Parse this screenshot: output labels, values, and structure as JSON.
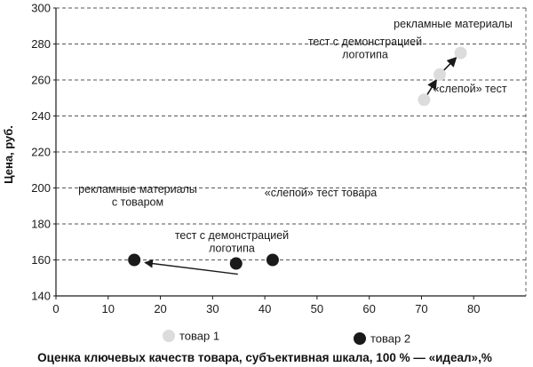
{
  "chart_data": {
    "type": "scatter",
    "xlabel": "Оценка ключевых качеств товара, субъективная шкала, 100 % — «идеал»,%",
    "ylabel": "Цена, руб.",
    "xlim": [
      0,
      90
    ],
    "ylim": [
      140,
      300
    ],
    "x_ticks": [
      "0",
      "10",
      "20",
      "30",
      "40",
      "50",
      "60",
      "70",
      "80"
    ],
    "y_ticks": [
      "140",
      "160",
      "180",
      "200",
      "220",
      "240",
      "260",
      "280",
      "300"
    ],
    "grid": "horizontal dashed",
    "series": [
      {
        "name": "товар 1",
        "color": "#dcdcdc",
        "points": [
          {
            "x": 70.5,
            "y": 249,
            "label": "«слепой» тест"
          },
          {
            "x": 73.5,
            "y": 263,
            "label": "тест с демонстрацией логотипа"
          },
          {
            "x": 77.5,
            "y": 275,
            "label": "рекламные материалы"
          }
        ]
      },
      {
        "name": "товар 2",
        "color": "#1a1a1a",
        "points": [
          {
            "x": 41.5,
            "y": 160,
            "label": "«слепой» тест товара"
          },
          {
            "x": 34.5,
            "y": 158,
            "label": "тест с демонстрацией логотипа"
          },
          {
            "x": 15,
            "y": 160,
            "label": "рекламные материалы с товаром"
          }
        ]
      }
    ],
    "annotations": [
      {
        "lines": [
          "рекламные материалы"
        ]
      },
      {
        "lines": [
          "тест с демонстрацией",
          "логотипа"
        ]
      },
      {
        "lines": [
          "«слепой» тест"
        ]
      },
      {
        "lines": [
          "рекламные материалы",
          "с товаром"
        ]
      },
      {
        "lines": [
          "«слепой» тест товара"
        ]
      },
      {
        "lines": [
          "тест с демонстрацией",
          "логотипа"
        ]
      }
    ],
    "legend": [
      "товар 1",
      "товар 2"
    ]
  }
}
